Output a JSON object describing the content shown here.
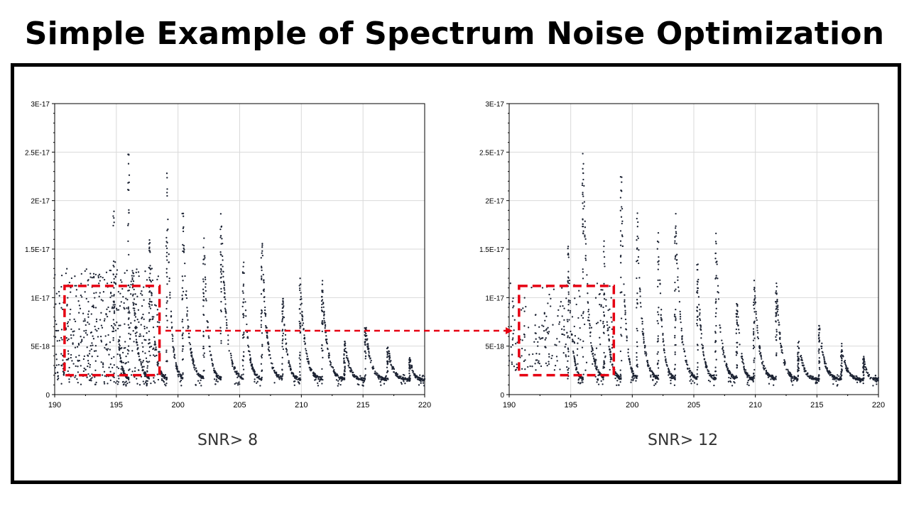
{
  "title": "Simple Example of Spectrum Noise Optimization",
  "colors": {
    "points": "#1c2333",
    "highlight": "#e60012",
    "grid": "#d9d9d9",
    "axis": "#000000"
  },
  "chart_data": [
    {
      "type": "scatter",
      "caption": "SNR> 8",
      "title": "",
      "xlabel": "",
      "ylabel": "",
      "xlim": [
        190,
        220
      ],
      "ylim": [
        0,
        3e-17
      ],
      "x_ticks": [
        190,
        195,
        200,
        205,
        210,
        215,
        220
      ],
      "x_tick_labels": [
        "190",
        "195",
        "200",
        "205",
        "210",
        "215",
        "220"
      ],
      "y_ticks": [
        0,
        5e-18,
        1e-17,
        1.5e-17,
        2e-17,
        2.5e-17,
        3e-17
      ],
      "y_tick_labels": [
        "0",
        "5E-18",
        "1E-17",
        "1.5E-17",
        "2E-17",
        "2.5E-17",
        "3E-17"
      ],
      "grid": true,
      "noise_floor": 1.5e-18,
      "noise_min": 1e-18,
      "noise_max": 1.3e-17,
      "noise_region_end": 198.5,
      "peaks": [
        {
          "x": 194.8,
          "y": 1.9e-17
        },
        {
          "x": 196.0,
          "y": 2.5e-17
        },
        {
          "x": 197.7,
          "y": 1.6e-17
        },
        {
          "x": 199.1,
          "y": 2.28e-17
        },
        {
          "x": 200.4,
          "y": 1.9e-17
        },
        {
          "x": 202.1,
          "y": 1.7e-17
        },
        {
          "x": 203.5,
          "y": 1.9e-17
        },
        {
          "x": 205.3,
          "y": 1.35e-17
        },
        {
          "x": 206.8,
          "y": 1.58e-17
        },
        {
          "x": 208.5,
          "y": 1.02e-17
        },
        {
          "x": 209.9,
          "y": 1.15e-17
        },
        {
          "x": 211.7,
          "y": 1.12e-17
        },
        {
          "x": 213.5,
          "y": 5.5e-18
        },
        {
          "x": 215.2,
          "y": 7.2e-18
        },
        {
          "x": 217.0,
          "y": 5e-18
        },
        {
          "x": 218.8,
          "y": 3.8e-18
        }
      ],
      "highlight_box": {
        "x": [
          190.8,
          198.5
        ],
        "y": [
          2e-18,
          1.12e-17
        ]
      }
    },
    {
      "type": "scatter",
      "caption": "SNR> 12",
      "title": "",
      "xlabel": "",
      "ylabel": "",
      "xlim": [
        190,
        220
      ],
      "ylim": [
        0,
        3e-17
      ],
      "x_ticks": [
        190,
        195,
        200,
        205,
        210,
        215,
        220
      ],
      "x_tick_labels": [
        "190",
        "195",
        "200",
        "205",
        "210",
        "215",
        "220"
      ],
      "y_ticks": [
        0,
        5e-18,
        1e-17,
        1.5e-17,
        2e-17,
        2.5e-17,
        3e-17
      ],
      "y_tick_labels": [
        "0",
        "5E-18",
        "1E-17",
        "1.5E-17",
        "2E-17",
        "2.5E-17",
        "3E-17"
      ],
      "grid": true,
      "noise_floor": 1.5e-18,
      "noise_min": 2.5e-18,
      "noise_max": 1.15e-17,
      "noise_region_end": 198.5,
      "peaks": [
        {
          "x": 194.8,
          "y": 1.55e-17
        },
        {
          "x": 196.0,
          "y": 2.5e-17
        },
        {
          "x": 197.7,
          "y": 1.6e-17
        },
        {
          "x": 199.1,
          "y": 2.28e-17
        },
        {
          "x": 200.4,
          "y": 1.9e-17
        },
        {
          "x": 202.1,
          "y": 1.7e-17
        },
        {
          "x": 203.5,
          "y": 1.9e-17
        },
        {
          "x": 205.3,
          "y": 1.35e-17
        },
        {
          "x": 206.8,
          "y": 1.58e-17
        },
        {
          "x": 208.5,
          "y": 1.02e-17
        },
        {
          "x": 209.9,
          "y": 1.15e-17
        },
        {
          "x": 211.7,
          "y": 1.12e-17
        },
        {
          "x": 213.5,
          "y": 5.5e-18
        },
        {
          "x": 215.2,
          "y": 7.2e-18
        },
        {
          "x": 217.0,
          "y": 5e-18
        },
        {
          "x": 218.8,
          "y": 3.8e-18
        }
      ],
      "highlight_box": {
        "x": [
          190.8,
          198.5
        ],
        "y": [
          2e-18,
          1.12e-17
        ]
      }
    }
  ]
}
